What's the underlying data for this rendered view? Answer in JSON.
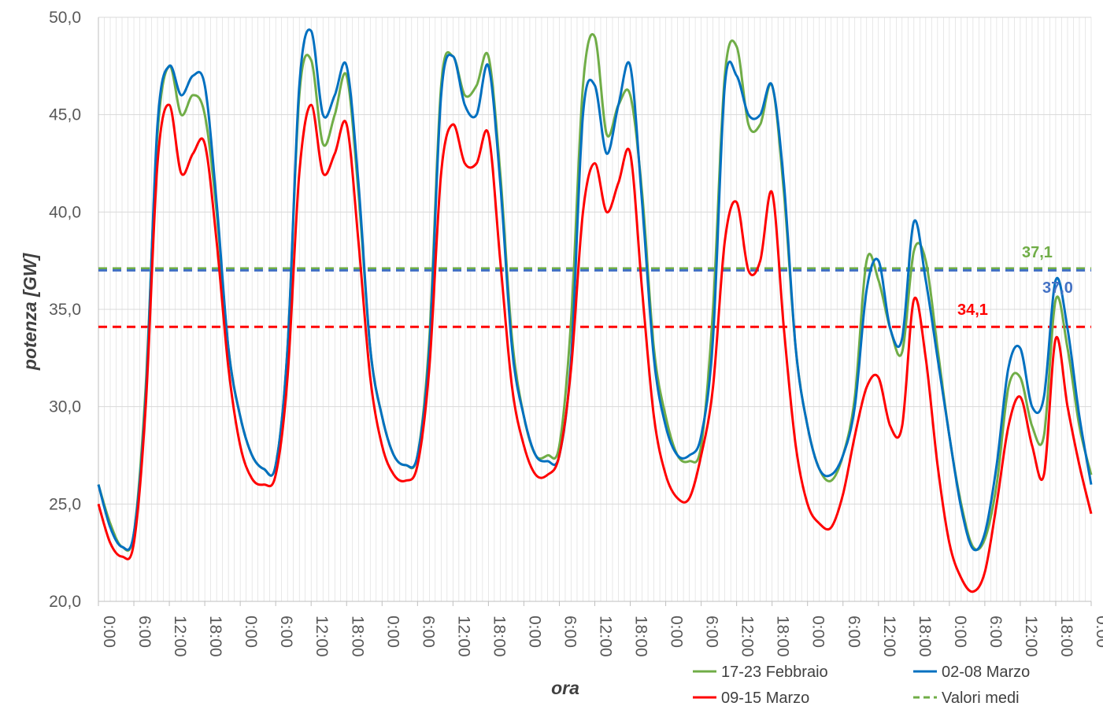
{
  "chart_data": {
    "type": "line",
    "xlabel": "ora",
    "ylabel": "potenza [GW]",
    "ylim": [
      20,
      50
    ],
    "yticks": [
      "20,0",
      "25,0",
      "30,0",
      "35,0",
      "40,0",
      "45,0",
      "50,0"
    ],
    "x_ticks": [
      "0:00",
      "6:00",
      "12:00",
      "18:00",
      "0:00",
      "6:00",
      "12:00",
      "18:00",
      "0:00",
      "6:00",
      "12:00",
      "18:00",
      "0:00",
      "6:00",
      "12:00",
      "18:00",
      "0:00",
      "6:00",
      "12:00",
      "18:00",
      "0:00",
      "6:00",
      "12:00",
      "18:00",
      "0:00",
      "6:00",
      "12:00",
      "18:00",
      "0:00"
    ],
    "x_hours_sampled": [
      0,
      2,
      4,
      6,
      8,
      10,
      12,
      14,
      16,
      18,
      20,
      22,
      24,
      26,
      28,
      30,
      32,
      34,
      36,
      38,
      40,
      42,
      44,
      46,
      48,
      50,
      52,
      54,
      56,
      58,
      60,
      62,
      64,
      66,
      68,
      70,
      72,
      74,
      76,
      78,
      80,
      82,
      84,
      86,
      88,
      90,
      92,
      94,
      96,
      98,
      100,
      102,
      104,
      106,
      108,
      110,
      112,
      114,
      116,
      118,
      120,
      122,
      124,
      126,
      128,
      130,
      132,
      134,
      136,
      138,
      140,
      142,
      144,
      146,
      148,
      150,
      152,
      154,
      156,
      158,
      160,
      162,
      164,
      166,
      168
    ],
    "series": [
      {
        "name": "17-23 Febbraio",
        "color": "#70AD47",
        "values": [
          26.0,
          24.0,
          22.8,
          23.5,
          31.0,
          44.0,
          47.5,
          45.0,
          46.0,
          45.0,
          40.0,
          33.0,
          29.5,
          27.5,
          26.8,
          27.0,
          33.0,
          46.0,
          47.8,
          43.5,
          45.0,
          47.0,
          41.0,
          33.0,
          29.5,
          27.5,
          27.0,
          27.5,
          33.5,
          46.5,
          48.0,
          46.0,
          46.5,
          48.0,
          42.0,
          33.5,
          29.5,
          27.5,
          27.5,
          28.0,
          34.5,
          46.5,
          49.0,
          44.0,
          45.5,
          46.0,
          41.0,
          33.0,
          29.5,
          27.5,
          27.2,
          28.0,
          35.0,
          47.0,
          48.5,
          44.5,
          44.5,
          46.5,
          41.0,
          33.0,
          29.0,
          26.8,
          26.2,
          27.5,
          30.5,
          37.5,
          36.5,
          34.0,
          32.8,
          38.0,
          37.5,
          33.0,
          28.5,
          25.0,
          22.8,
          23.2,
          26.0,
          31.0,
          31.5,
          29.0,
          28.5,
          35.5,
          33.0,
          29.0,
          26.5
        ]
      },
      {
        "name": "02-08 Marzo",
        "color": "#0070C0",
        "values": [
          26.0,
          23.8,
          22.8,
          23.5,
          30.5,
          44.5,
          47.5,
          46.0,
          47.0,
          46.5,
          40.5,
          33.0,
          29.5,
          27.5,
          26.8,
          27.0,
          33.0,
          46.5,
          49.3,
          45.0,
          46.0,
          47.5,
          41.5,
          33.0,
          29.5,
          27.5,
          27.0,
          27.5,
          33.0,
          46.0,
          48.0,
          45.5,
          45.0,
          47.5,
          41.5,
          33.0,
          29.5,
          27.5,
          27.2,
          27.5,
          32.5,
          45.0,
          46.5,
          43.0,
          45.5,
          47.5,
          40.5,
          32.5,
          29.0,
          27.5,
          27.5,
          28.5,
          33.5,
          46.5,
          47.0,
          45.0,
          45.0,
          46.5,
          41.5,
          33.0,
          29.0,
          26.8,
          26.5,
          27.5,
          30.0,
          36.0,
          37.5,
          34.0,
          33.5,
          39.5,
          36.5,
          32.5,
          28.5,
          24.8,
          22.7,
          23.5,
          27.0,
          32.0,
          33.0,
          30.0,
          30.5,
          36.5,
          34.0,
          29.5,
          26.0
        ]
      },
      {
        "name": "09-15 Marzo",
        "color": "#FF0000",
        "values": [
          25.0,
          23.0,
          22.3,
          23.0,
          30.0,
          42.5,
          45.5,
          42.0,
          43.0,
          43.5,
          38.5,
          32.0,
          28.0,
          26.3,
          26.0,
          26.5,
          31.5,
          42.0,
          45.5,
          42.0,
          43.0,
          44.5,
          38.5,
          31.5,
          28.0,
          26.5,
          26.2,
          27.0,
          32.0,
          42.0,
          44.5,
          42.5,
          42.5,
          44.0,
          37.5,
          31.0,
          28.0,
          26.5,
          26.5,
          27.5,
          32.0,
          40.0,
          42.5,
          40.0,
          41.5,
          43.0,
          36.0,
          29.5,
          26.5,
          25.3,
          25.3,
          27.5,
          31.0,
          38.5,
          40.5,
          37.0,
          37.5,
          41.0,
          34.0,
          28.0,
          25.0,
          24.0,
          23.8,
          25.5,
          28.5,
          31.0,
          31.5,
          29.0,
          29.0,
          35.5,
          32.5,
          27.0,
          23.0,
          21.2,
          20.5,
          21.5,
          25.0,
          29.0,
          30.5,
          28.0,
          26.5,
          33.5,
          30.0,
          27.0,
          24.5
        ]
      }
    ],
    "averages": [
      {
        "name": "17-23 Febbraio",
        "value": 37.1,
        "label": "37,1",
        "color": "#70AD47"
      },
      {
        "name": "02-08 Marzo",
        "value": 37.0,
        "label": "37,0",
        "color": "#4472C4"
      },
      {
        "name": "09-15 Marzo",
        "value": 34.1,
        "label": "34,1",
        "color": "#FF0000"
      }
    ],
    "legend": {
      "placement": "bottom-right",
      "entries": [
        {
          "label": "17-23 Febbraio",
          "color": "#70AD47",
          "style": "solid"
        },
        {
          "label": "02-08 Marzo",
          "color": "#0070C0",
          "style": "solid"
        },
        {
          "label": "09-15 Marzo",
          "color": "#FF0000",
          "style": "solid"
        },
        {
          "label": "Valori medi",
          "color": "#70AD47",
          "style": "dashed"
        }
      ]
    },
    "grid": {
      "major_y": true,
      "minor_x": true,
      "color": "#D9D9D9"
    }
  }
}
